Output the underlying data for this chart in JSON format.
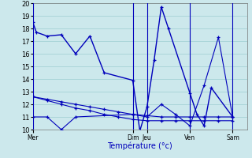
{
  "title": "Température (°c)",
  "bg_color": "#cce8ec",
  "grid_color": "#9ecdd2",
  "line_color": "#0000bb",
  "ylim": [
    10,
    20
  ],
  "yticks": [
    10,
    11,
    12,
    13,
    14,
    15,
    16,
    17,
    18,
    19,
    20
  ],
  "day_labels": [
    "Mer",
    "Dim",
    "Jeu",
    "Ven",
    "Sam"
  ],
  "day_x": [
    0,
    14,
    16,
    22,
    28
  ],
  "xlim": [
    0,
    30
  ],
  "line1_x": [
    0,
    0.5,
    2,
    4,
    6,
    8,
    10,
    14,
    15,
    16,
    17,
    18,
    19,
    22,
    23,
    24,
    25,
    28
  ],
  "line1_y": [
    18.5,
    17.7,
    17.4,
    17.5,
    16.0,
    17.4,
    14.5,
    13.9,
    9.9,
    11.8,
    15.5,
    19.7,
    18.0,
    12.9,
    11.2,
    10.3,
    13.3,
    11.0
  ],
  "line2_x": [
    0,
    2,
    4,
    6,
    8,
    10,
    12,
    14,
    16,
    18,
    20,
    22,
    24,
    26,
    28
  ],
  "line2_y": [
    12.6,
    12.4,
    12.2,
    12.0,
    11.8,
    11.6,
    11.4,
    11.2,
    11.1,
    11.0,
    11.0,
    11.0,
    11.0,
    11.0,
    11.0
  ],
  "line3_x": [
    0,
    2,
    4,
    6,
    8,
    10,
    12,
    14,
    16,
    18,
    20,
    22,
    24,
    26,
    28
  ],
  "line3_y": [
    12.6,
    12.3,
    12.0,
    11.7,
    11.5,
    11.2,
    11.0,
    10.8,
    10.7,
    10.7,
    10.7,
    10.7,
    10.7,
    10.7,
    10.7
  ],
  "line4_x": [
    0,
    2,
    4,
    6,
    14,
    16,
    18,
    20,
    22,
    24,
    26,
    28
  ],
  "line4_y": [
    11.0,
    11.0,
    10.0,
    11.0,
    11.2,
    11.0,
    12.0,
    11.2,
    10.3,
    13.5,
    17.3,
    11.0
  ]
}
